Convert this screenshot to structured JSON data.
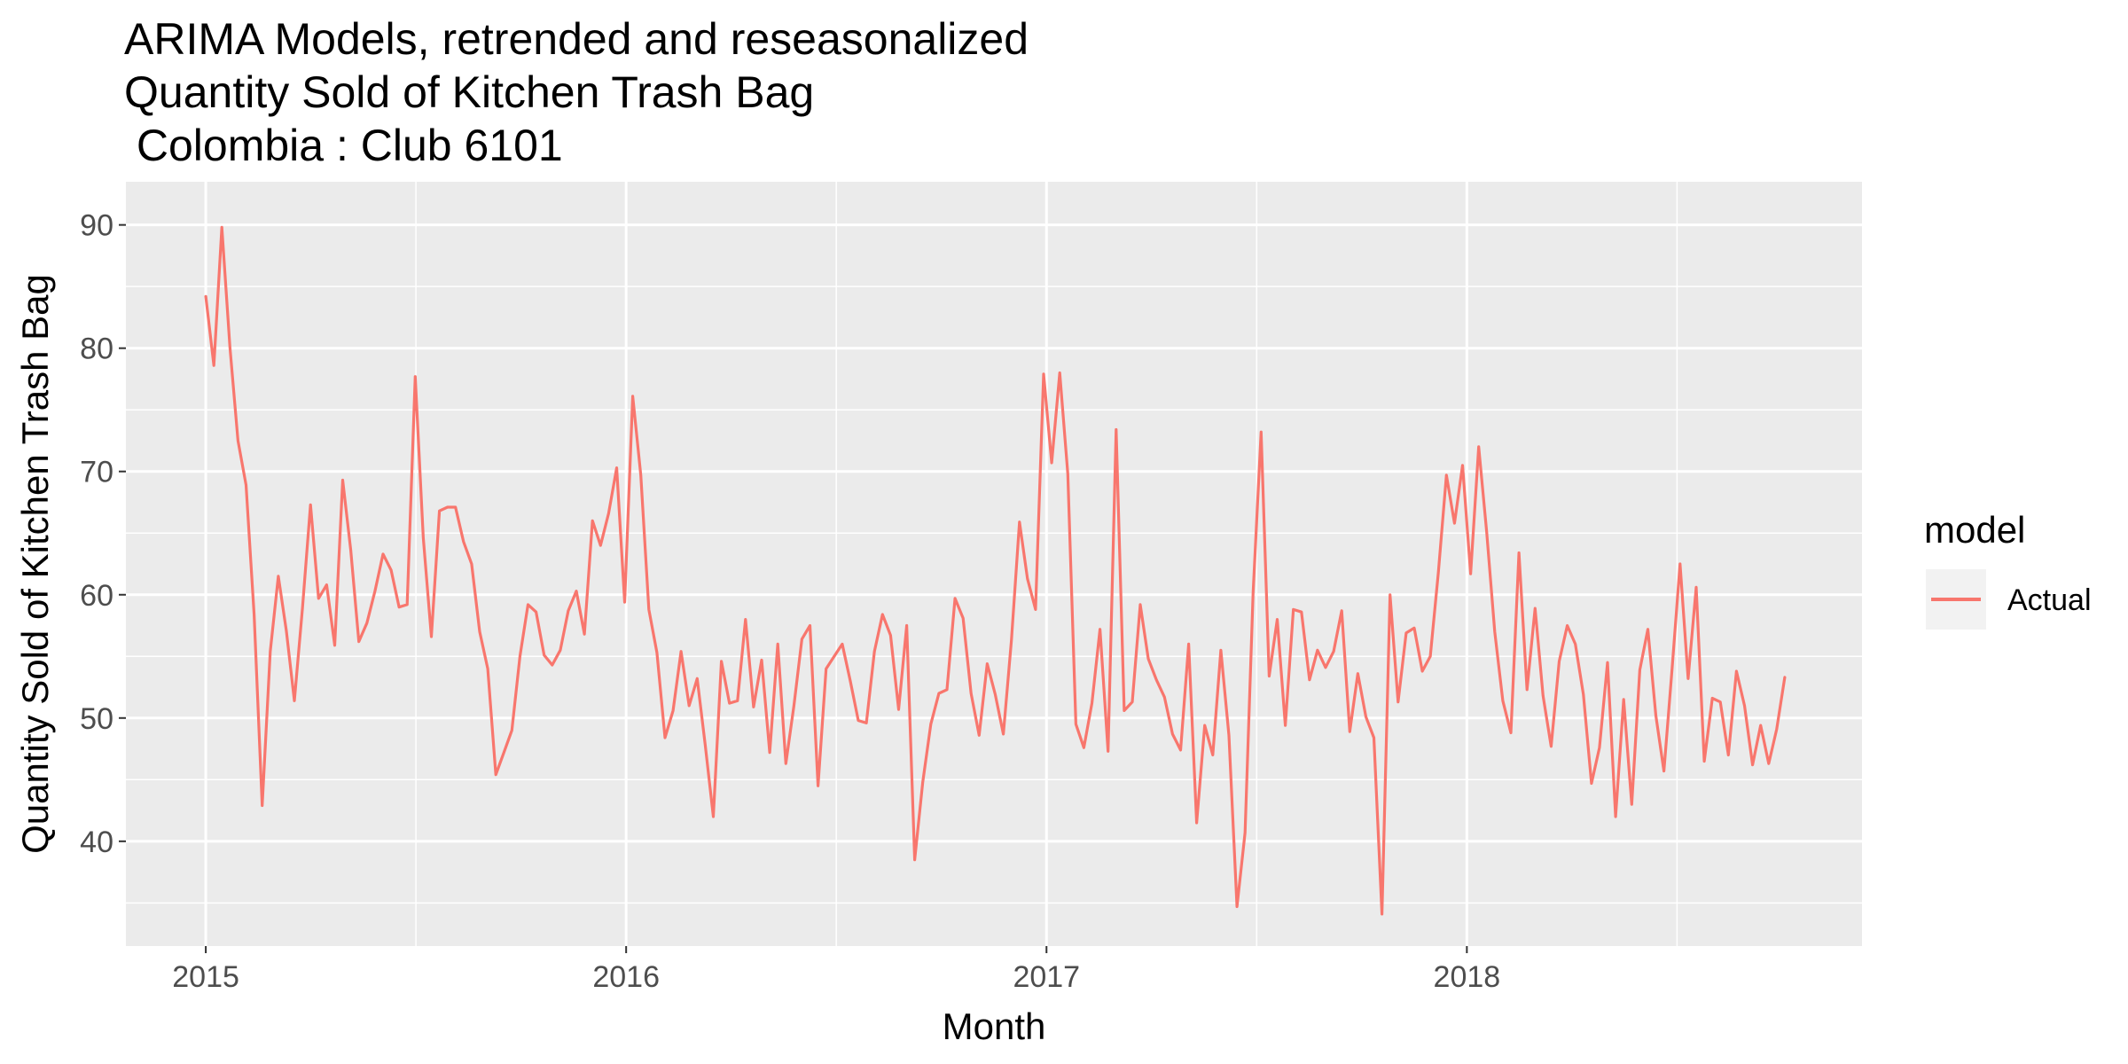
{
  "chart_data": {
    "type": "line",
    "title": [
      "ARIMA Models, retrended and reseasonalized",
      "Quantity Sold of Kitchen Trash Bag",
      " Colombia : Club 6101"
    ],
    "xlabel": "Month",
    "ylabel": "Quantity Sold of Kitchen Trash Bag",
    "x_ticks": [
      2015,
      2016,
      2017,
      2018
    ],
    "y_ticks": [
      40,
      50,
      60,
      70,
      80,
      90
    ],
    "xlim": [
      2014.81,
      2018.94
    ],
    "ylim": [
      31.5,
      93.5
    ],
    "grid": true,
    "legend": {
      "title": "model",
      "position": "right",
      "entries": [
        "Actual"
      ]
    },
    "colors": {
      "Actual": "#F8766D",
      "panel": "#EBEBEB",
      "grid": "#FFFFFF"
    },
    "x_start": 2015.0,
    "x_step_weeks": 1,
    "series": [
      {
        "name": "Actual",
        "values": [
          84.2,
          78.6,
          89.8,
          80.1,
          72.5,
          68.9,
          58.4,
          42.9,
          55.4,
          61.5,
          57.1,
          51.4,
          58.9,
          67.3,
          59.7,
          60.8,
          55.9,
          69.3,
          63.6,
          56.2,
          57.7,
          60.3,
          63.3,
          62.0,
          59.0,
          59.2,
          77.7,
          64.6,
          56.6,
          66.8,
          67.1,
          67.1,
          64.3,
          62.5,
          57.0,
          54.0,
          45.4,
          47.2,
          49.0,
          55.0,
          59.2,
          58.6,
          55.1,
          54.3,
          55.5,
          58.7,
          60.3,
          56.8,
          66.0,
          64.0,
          66.6,
          70.3,
          59.4,
          76.1,
          69.7,
          58.8,
          55.3,
          48.4,
          50.6,
          55.4,
          51.0,
          53.2,
          47.8,
          42.0,
          54.6,
          51.2,
          51.4,
          58.0,
          50.9,
          54.7,
          47.2,
          56.0,
          46.3,
          51.0,
          56.4,
          57.5,
          44.5,
          54.0,
          55.0,
          56.0,
          53.0,
          49.8,
          49.6,
          55.4,
          58.4,
          56.7,
          50.7,
          57.5,
          38.5,
          44.8,
          49.5,
          52.0,
          52.3,
          59.7,
          58.1,
          52.0,
          48.6,
          54.4,
          51.9,
          48.7,
          56.3,
          65.9,
          61.3,
          58.8,
          77.9,
          70.7,
          78.0,
          69.8,
          49.5,
          47.6,
          51.2,
          57.2,
          47.3,
          73.4,
          50.6,
          51.3,
          59.2,
          54.8,
          53.1,
          51.7,
          48.7,
          47.4,
          56.0,
          41.5,
          49.4,
          47.0,
          55.5,
          48.6,
          34.7,
          40.7,
          60.2,
          73.2,
          53.4,
          58.0,
          49.4,
          58.8,
          58.6,
          53.1,
          55.5,
          54.1,
          55.4,
          58.7,
          48.9,
          53.6,
          50.1,
          48.4,
          34.1,
          60.0,
          51.3,
          56.9,
          57.3,
          53.8,
          55.0,
          61.8,
          69.7,
          65.8,
          70.5,
          61.7,
          72.0,
          65.1,
          57.0,
          51.4,
          48.8,
          63.4,
          52.3,
          58.9,
          51.8,
          47.7,
          54.6,
          57.5,
          56.0,
          51.9,
          44.7,
          47.6,
          54.5,
          42.0,
          51.5,
          43.0,
          53.9,
          57.2,
          50.2,
          45.7,
          53.9,
          62.5,
          53.2,
          60.6,
          46.5,
          51.6,
          51.3,
          47.0,
          53.8,
          51.0,
          46.2,
          49.4,
          46.3,
          49.1,
          53.3
        ]
      }
    ]
  }
}
